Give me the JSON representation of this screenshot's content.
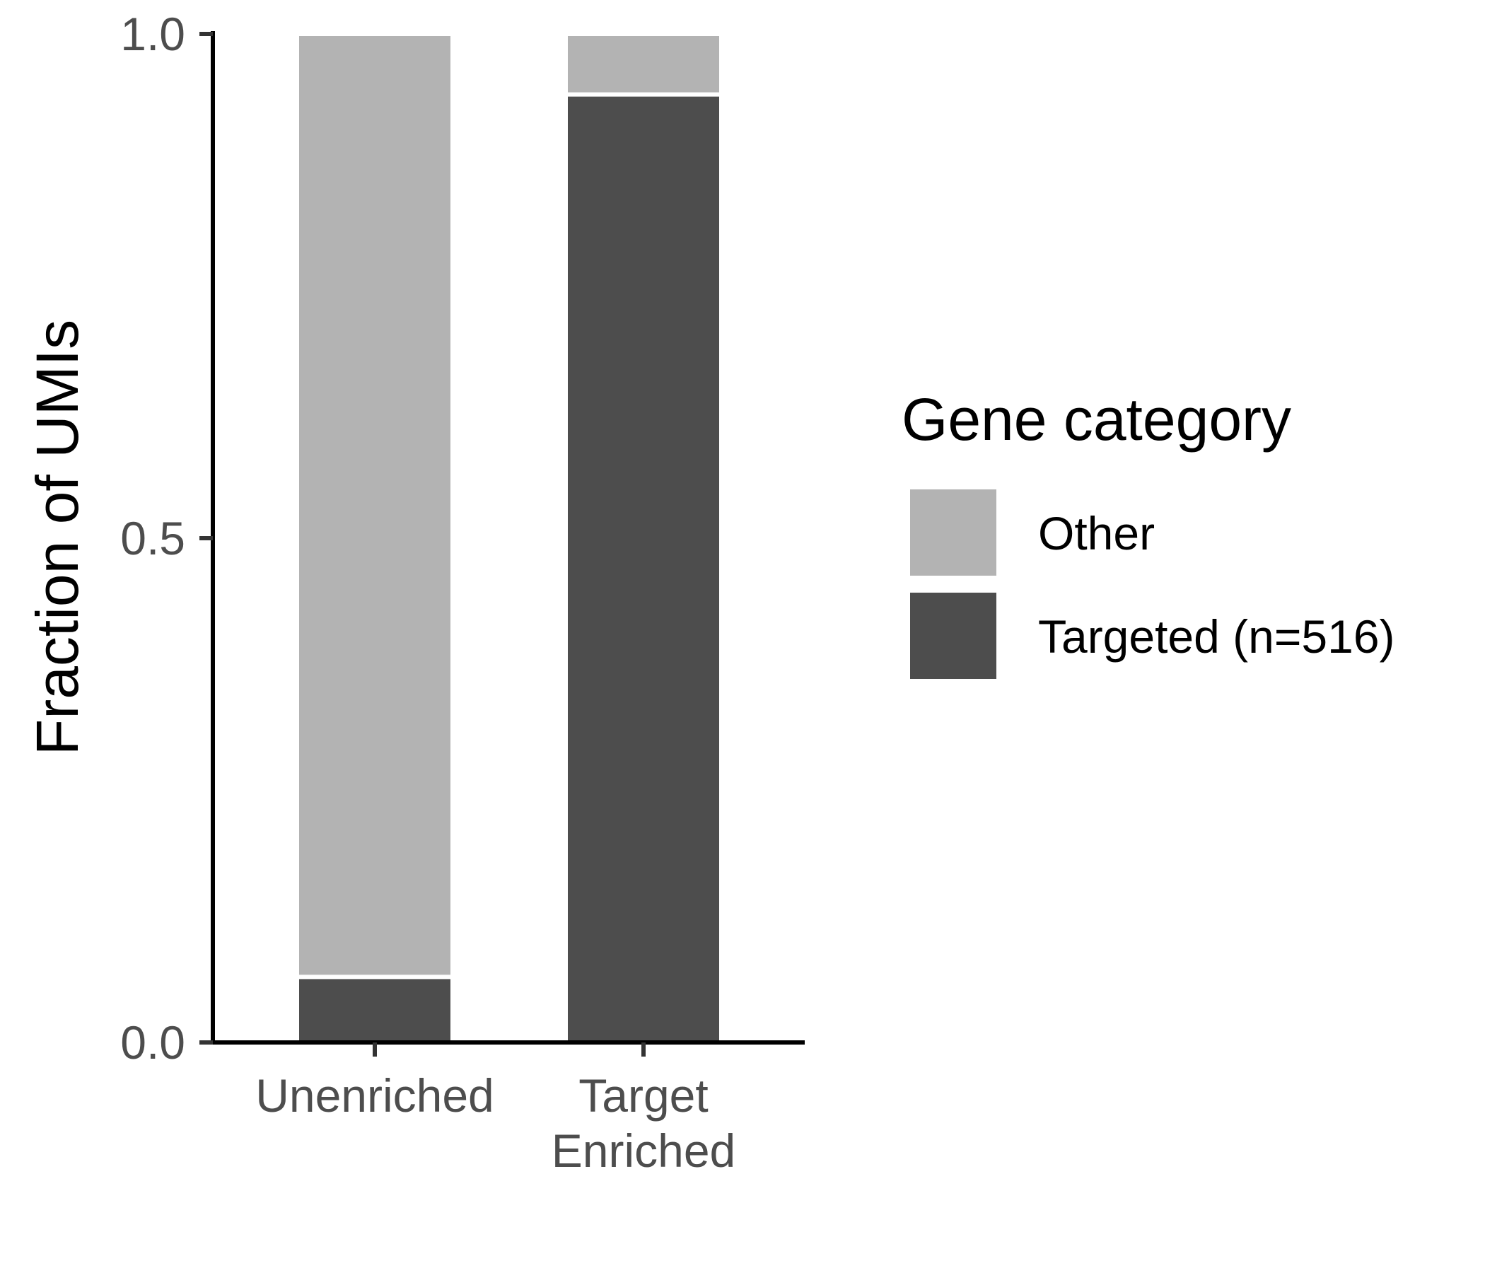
{
  "chart_data": {
    "type": "bar",
    "stacked": true,
    "categories": [
      {
        "lines": [
          "Unenriched"
        ]
      },
      {
        "lines": [
          "Target",
          "Enriched"
        ]
      }
    ],
    "series": [
      {
        "name": "Targeted (n=516)",
        "color": "#4d4d4d",
        "values": [
          0.065,
          0.94
        ]
      },
      {
        "name": "Other",
        "color": "#b3b3b3",
        "values": [
          0.935,
          0.06
        ]
      }
    ],
    "ylabel": "Fraction of UMIs",
    "xlabel": "",
    "ylim": [
      0,
      1
    ],
    "yticks": [
      "0.0",
      "0.5",
      "1.0"
    ],
    "grid": false,
    "legend": {
      "title": "Gene category",
      "placement": "right",
      "items": [
        "Other",
        "Targeted (n=516)"
      ]
    }
  }
}
